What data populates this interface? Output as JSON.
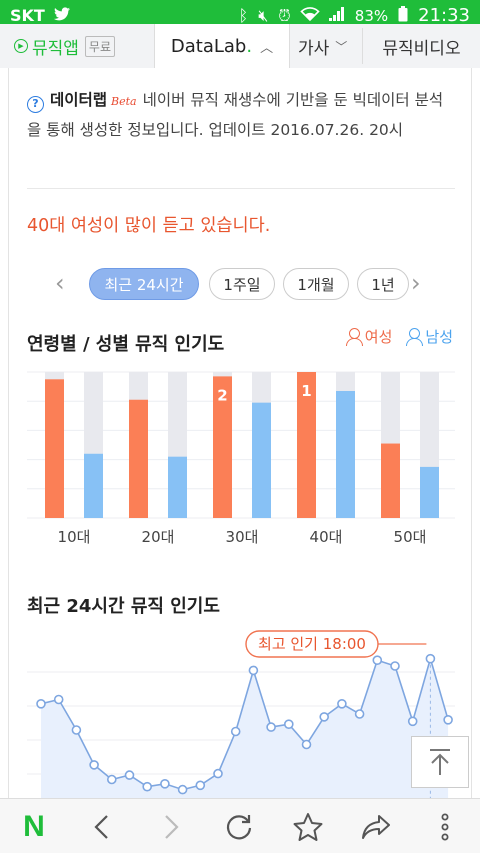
{
  "status_bar": {
    "carrier": "SKT",
    "battery": "83%",
    "time": "21:33",
    "icons": [
      "twitter-icon",
      "bluetooth-icon",
      "mute-icon",
      "alarm-icon",
      "wifi-icon",
      "signal-icon",
      "battery-icon"
    ]
  },
  "tabs": {
    "music": "뮤직앱",
    "music_badge": "무료",
    "datalab_prefix": "DataLab",
    "datalab_dot": ".",
    "lyrics": "가사",
    "mv": "뮤직비디오"
  },
  "info": {
    "brand": "데이터랩",
    "beta": "Beta",
    "text": "네이버 뮤직 재생수에 기반을 둔 빅데이터 분석을 통해 생성한 정보입니다. 업데이트 2016.07.26. 20시"
  },
  "headline": "40대 여성이 많이 듣고 있습니다.",
  "periods": {
    "items": [
      "최근 24시간",
      "1주일",
      "1개월",
      "1년"
    ],
    "active_index": 0
  },
  "age_gender": {
    "title": "연령별 / 성별 뮤직 인기도",
    "legend_female": "여성",
    "legend_male": "남성",
    "colors": {
      "female": "#fb7f56",
      "male": "#87c1f5",
      "track": "#e8e9ee"
    }
  },
  "chart_data": [
    {
      "type": "bar",
      "categories": [
        "10대",
        "20대",
        "30대",
        "40대",
        "50대"
      ],
      "series": [
        {
          "name": "여성",
          "values": [
            95,
            81,
            97,
            100,
            51
          ]
        },
        {
          "name": "남성",
          "values": [
            44,
            42,
            79,
            87,
            35
          ]
        }
      ],
      "rank_labels": [
        {
          "category": "30대",
          "series": "여성",
          "label": "2"
        },
        {
          "category": "40대",
          "series": "여성",
          "label": "1"
        }
      ],
      "ylim": [
        0,
        100
      ],
      "grid": true
    },
    {
      "type": "area",
      "title": "최근 24시간 뮤직 인기도",
      "annotation": "최고 인기 18:00",
      "peak_index": 22,
      "values": [
        62,
        65,
        44,
        20,
        10,
        13,
        5,
        7,
        3,
        6,
        14,
        43,
        85,
        46,
        48,
        34,
        53,
        62,
        55,
        92,
        88,
        50,
        93,
        51
      ],
      "ylim": [
        0,
        110
      ],
      "grid": true
    }
  ],
  "bottom_nav": {
    "icons": [
      "naver-n-icon",
      "back-icon",
      "forward-icon",
      "refresh-icon",
      "bookmark-star-icon",
      "share-icon",
      "more-icon"
    ]
  }
}
